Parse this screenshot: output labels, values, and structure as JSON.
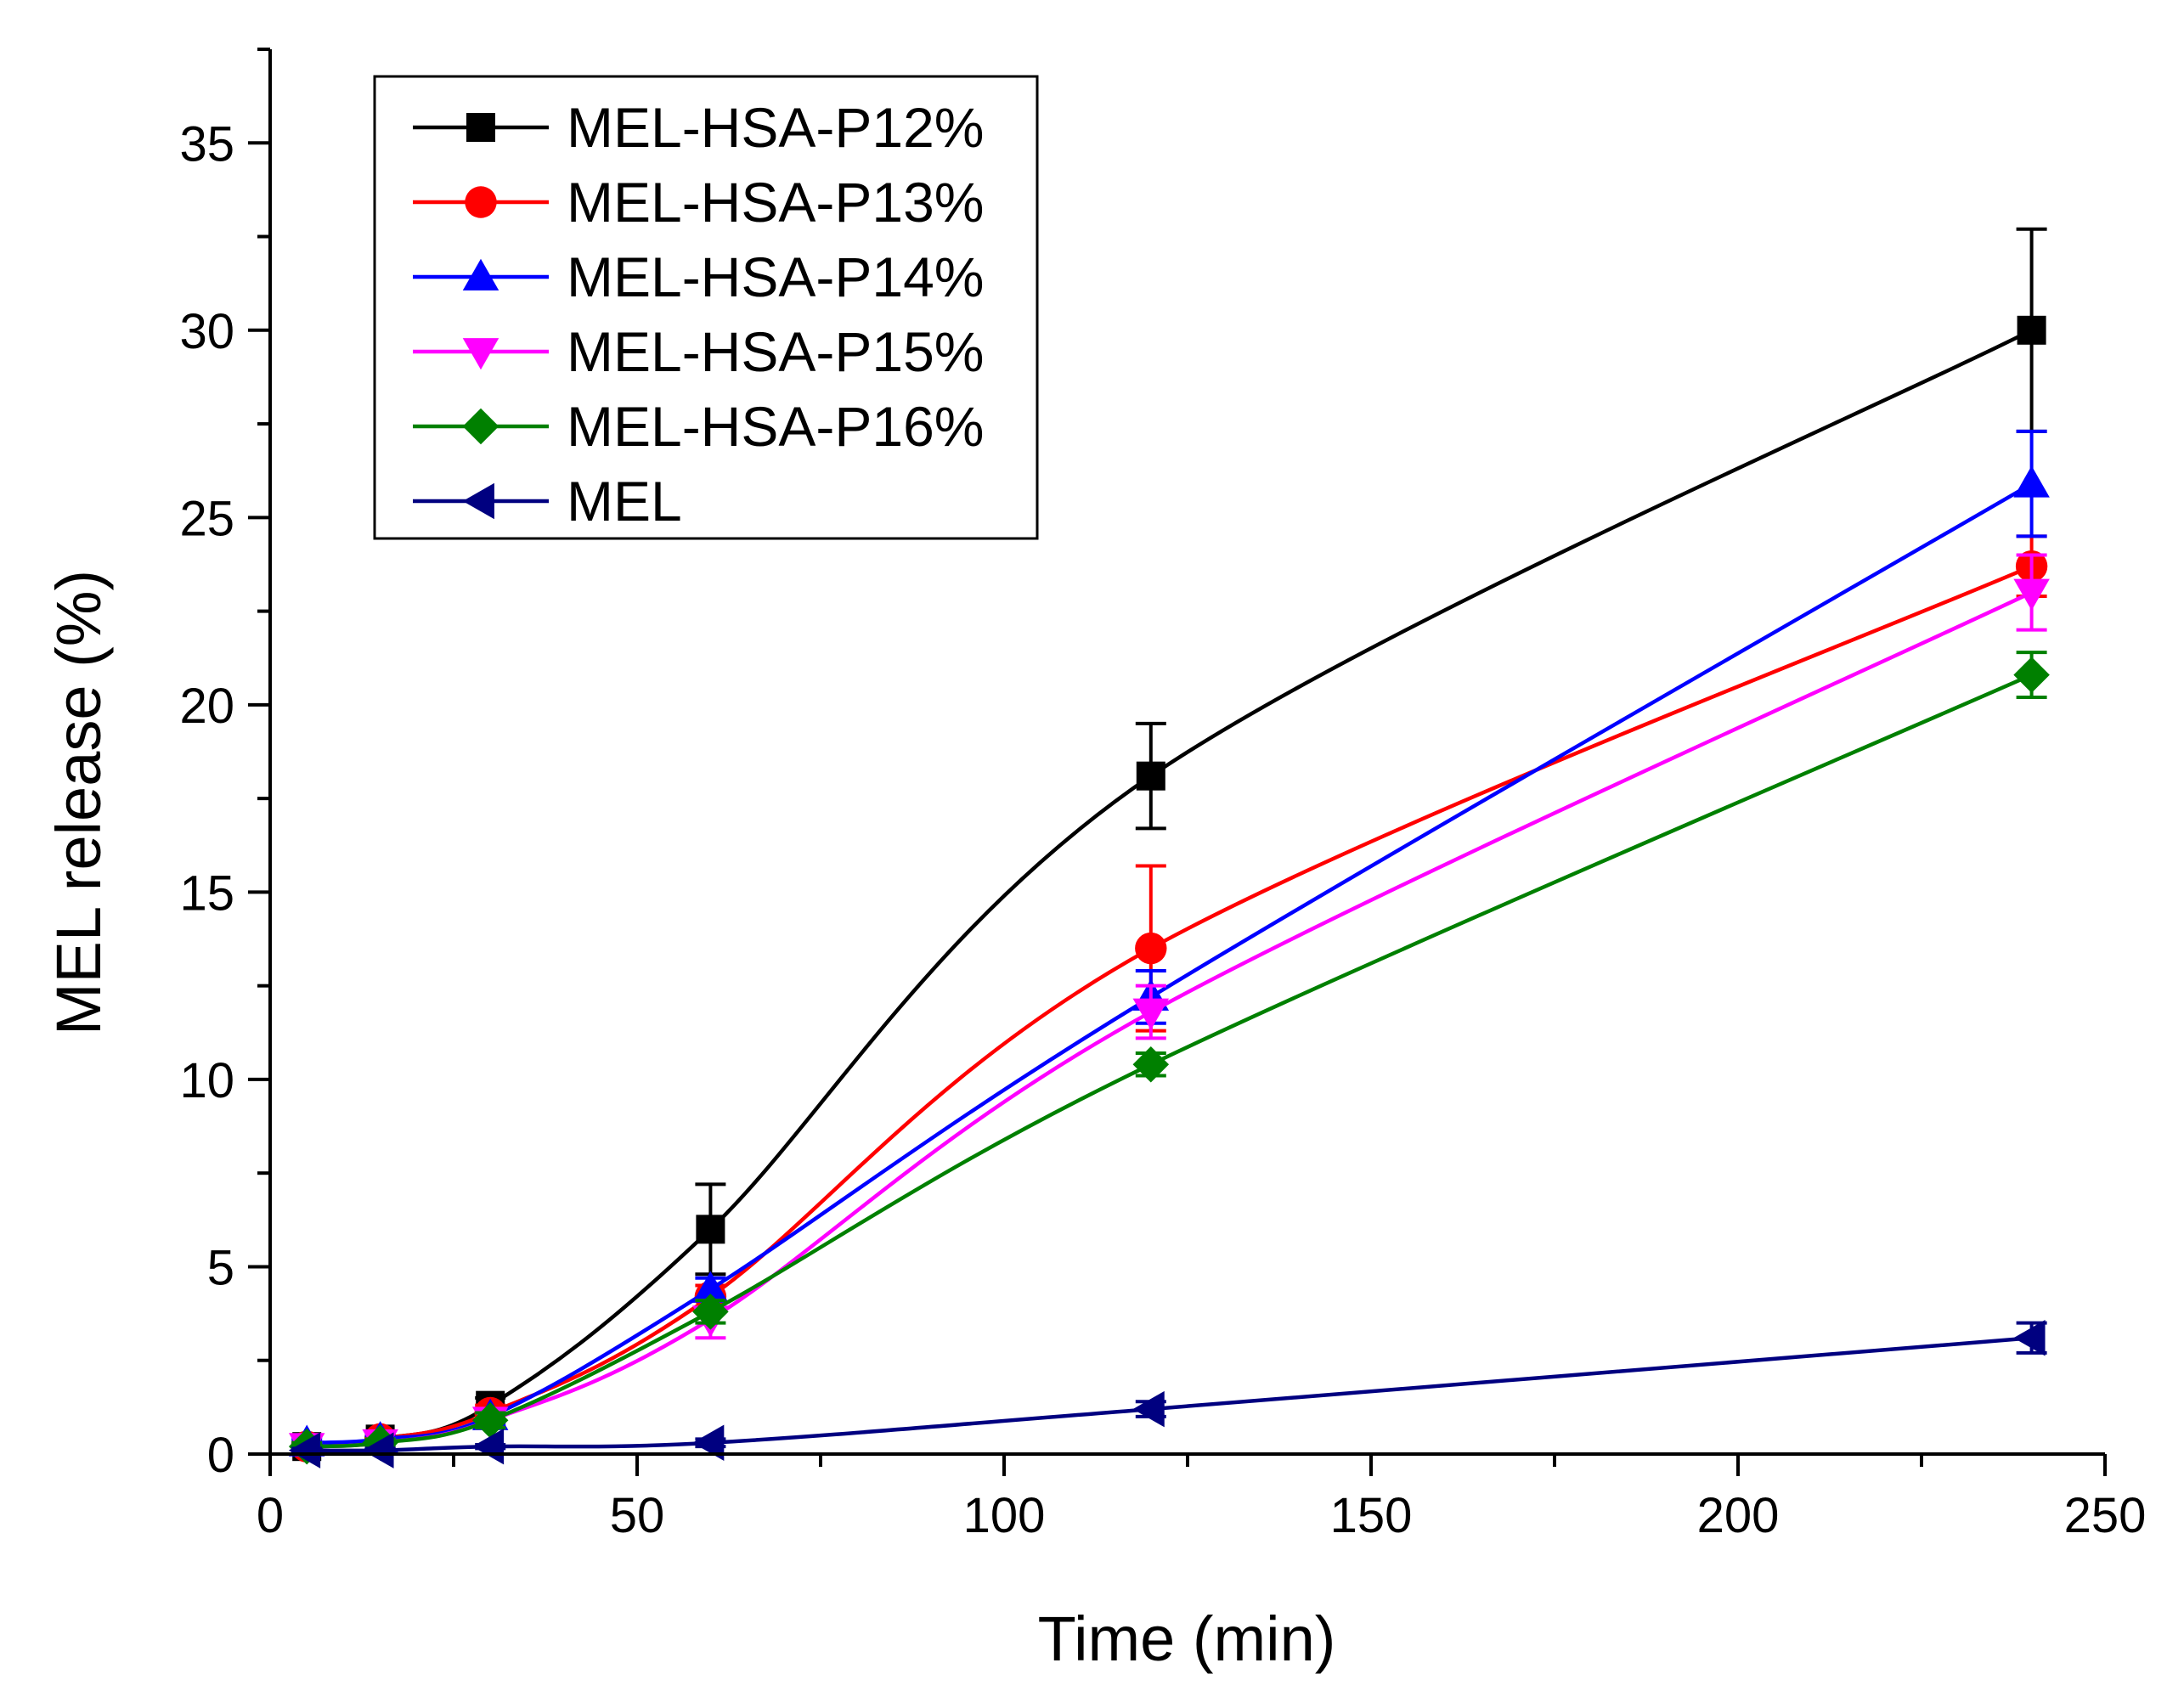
{
  "chart_data": {
    "type": "line",
    "title": "",
    "xlabel": "Time (min)",
    "ylabel": "MEL release (%)",
    "xlim": [
      0,
      250
    ],
    "ylim": [
      0,
      37.5
    ],
    "xticks": [
      0,
      50,
      100,
      150,
      200,
      250
    ],
    "yticks": [
      0,
      5,
      10,
      15,
      20,
      25,
      30,
      35
    ],
    "xtick_labels": [
      "0",
      "50",
      "100",
      "150",
      "200",
      "250"
    ],
    "ytick_labels": [
      "0",
      "5",
      "10",
      "15",
      "20",
      "25",
      "30",
      "35"
    ],
    "grid": false,
    "legend_position": "top-left",
    "x": [
      5,
      15,
      30,
      60,
      120,
      240
    ],
    "series": [
      {
        "name": "MEL-HSA-P12%",
        "color": "#000000",
        "marker": "square",
        "values": [
          0.2,
          0.4,
          1.3,
          6.0,
          18.1,
          30.0
        ],
        "errors": [
          0.1,
          0.1,
          0.2,
          1.2,
          1.4,
          2.7
        ]
      },
      {
        "name": "MEL-HSA-P13%",
        "color": "#ff0000",
        "marker": "circle",
        "values": [
          0.2,
          0.4,
          1.1,
          4.2,
          13.5,
          23.7
        ],
        "errors": [
          0.1,
          0.1,
          0.2,
          0.3,
          2.2,
          0.8
        ]
      },
      {
        "name": "MEL-HSA-P14%",
        "color": "#0000ff",
        "marker": "triangle-up",
        "values": [
          0.3,
          0.4,
          1.0,
          4.4,
          12.2,
          25.9
        ],
        "errors": [
          0.1,
          0.1,
          0.2,
          0.3,
          0.7,
          1.4
        ]
      },
      {
        "name": "MEL-HSA-P15%",
        "color": "#ff00ff",
        "marker": "triangle-down",
        "values": [
          0.2,
          0.3,
          0.9,
          3.6,
          11.8,
          23.0
        ],
        "errors": [
          0.1,
          0.1,
          0.2,
          0.5,
          0.7,
          1.0
        ]
      },
      {
        "name": "MEL-HSA-P16%",
        "color": "#008000",
        "marker": "diamond",
        "values": [
          0.2,
          0.3,
          0.9,
          3.8,
          10.4,
          20.8
        ],
        "errors": [
          0.1,
          0.1,
          0.2,
          0.3,
          0.3,
          0.6
        ]
      },
      {
        "name": "MEL",
        "color": "#000080",
        "marker": "triangle-left",
        "values": [
          0.1,
          0.1,
          0.2,
          0.3,
          1.2,
          3.1
        ],
        "errors": [
          0.05,
          0.05,
          0.05,
          0.1,
          0.2,
          0.4
        ]
      }
    ]
  }
}
